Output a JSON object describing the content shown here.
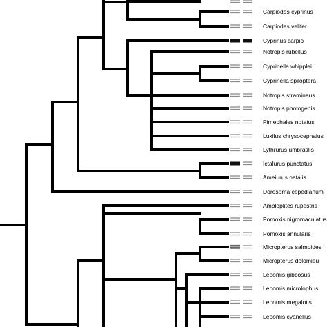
{
  "taxa": [
    {
      "name": "Carpiodes cyprinus",
      "marker": [
        "grey",
        "grey"
      ]
    },
    {
      "name": "Carpiodes velifer",
      "marker": [
        "grey",
        "grey"
      ]
    },
    {
      "name": "Cyprinus carpio",
      "marker": [
        "black",
        "black"
      ]
    },
    {
      "name": "Notropis rubellus",
      "marker": [
        "grey",
        "grey"
      ]
    },
    {
      "name": "Cyprinella whipplei",
      "marker": [
        "grey",
        "grey"
      ]
    },
    {
      "name": "Cyprinella spiloptera",
      "marker": [
        "grey",
        "grey"
      ]
    },
    {
      "name": "Notropis stramineus",
      "marker": [
        "grey",
        "grey"
      ]
    },
    {
      "name": "Notropis photogenis",
      "marker": [
        "grey",
        "grey"
      ]
    },
    {
      "name": "Pimephales notatus",
      "marker": [
        "grey",
        "grey"
      ]
    },
    {
      "name": "Luxilus chrysocephalus",
      "marker": [
        "grey",
        "grey"
      ]
    },
    {
      "name": "Lythrurus umbratilis",
      "marker": [
        "grey",
        "grey"
      ]
    },
    {
      "name": "Ictalurus punctatus",
      "marker": [
        "black",
        "grey"
      ]
    },
    {
      "name": "Ameiurus natalis",
      "marker": [
        "grey",
        "grey"
      ]
    },
    {
      "name": "Dorosoma cepedianum",
      "marker": [
        "grey",
        "grey"
      ]
    },
    {
      "name": "Ambloplites rupestris",
      "marker": [
        "grey",
        "grey"
      ]
    },
    {
      "name": "Pomoxis nigromaculatus",
      "marker": [
        "grey",
        "grey"
      ]
    },
    {
      "name": "Pomoxis annularis",
      "marker": [
        "grey",
        "grey"
      ]
    },
    {
      "name": "Micropterus salmoides",
      "marker": [
        "dark",
        "grey"
      ]
    },
    {
      "name": "Micropterus dolomieu",
      "marker": [
        "grey",
        "grey"
      ]
    },
    {
      "name": "Lepomis gibbosus",
      "marker": [
        "grey",
        "grey"
      ]
    },
    {
      "name": "Lepomis microlophus",
      "marker": [
        "grey",
        "grey"
      ]
    },
    {
      "name": "Lepomis megalotis",
      "marker": [
        "grey",
        "grey"
      ]
    },
    {
      "name": "Lepomis cyanellus",
      "marker": [
        "grey",
        "grey"
      ]
    }
  ],
  "colors": {
    "branch": "#000000",
    "black": "#111111",
    "dark": "#555555",
    "grey": "#8c8c8c"
  }
}
